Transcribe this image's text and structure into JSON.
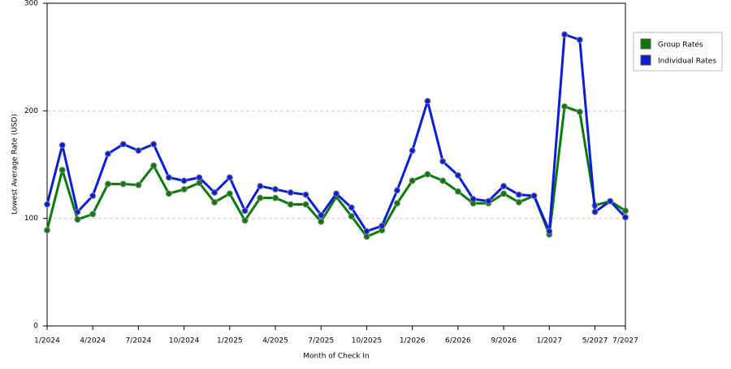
{
  "chart_data": {
    "type": "line",
    "x_label": "Month of Check In",
    "y_label": "Lowest Average Rate (USD)",
    "categories": [
      "1/2024",
      null,
      null,
      "4/2024",
      null,
      null,
      "7/2024",
      null,
      null,
      "10/2024",
      null,
      null,
      "1/2025",
      null,
      null,
      "4/2025",
      null,
      null,
      "7/2025",
      null,
      null,
      "10/2025",
      null,
      null,
      "1/2026",
      null,
      null,
      "6/2026",
      null,
      null,
      "9/2026",
      null,
      null,
      "1/2027",
      null,
      null,
      "5/2027",
      null,
      "7/2027"
    ],
    "series": [
      {
        "name": "Group Rates",
        "color": "#0b7a0b",
        "values": [
          89,
          145,
          99,
          104,
          132,
          132,
          131,
          149,
          123,
          127,
          133,
          115,
          123,
          98,
          119,
          119,
          113,
          113,
          97,
          120,
          102,
          83,
          89,
          114,
          135,
          141,
          135,
          125,
          114,
          114,
          123,
          115,
          121,
          85,
          204,
          199,
          112,
          116,
          107
        ]
      },
      {
        "name": "Individual Rates",
        "color": "#0a1ed8",
        "values": [
          113,
          168,
          106,
          121,
          160,
          169,
          163,
          169,
          138,
          135,
          138,
          124,
          138,
          107,
          130,
          127,
          124,
          122,
          103,
          123,
          110,
          88,
          93,
          126,
          163,
          209,
          153,
          140,
          118,
          116,
          130,
          122,
          121,
          88,
          271,
          266,
          106,
          116,
          101
        ]
      }
    ],
    "ylim": [
      0,
      300
    ],
    "yticks": [
      0,
      100,
      200,
      300
    ],
    "grid": true,
    "legend": "top-right"
  }
}
